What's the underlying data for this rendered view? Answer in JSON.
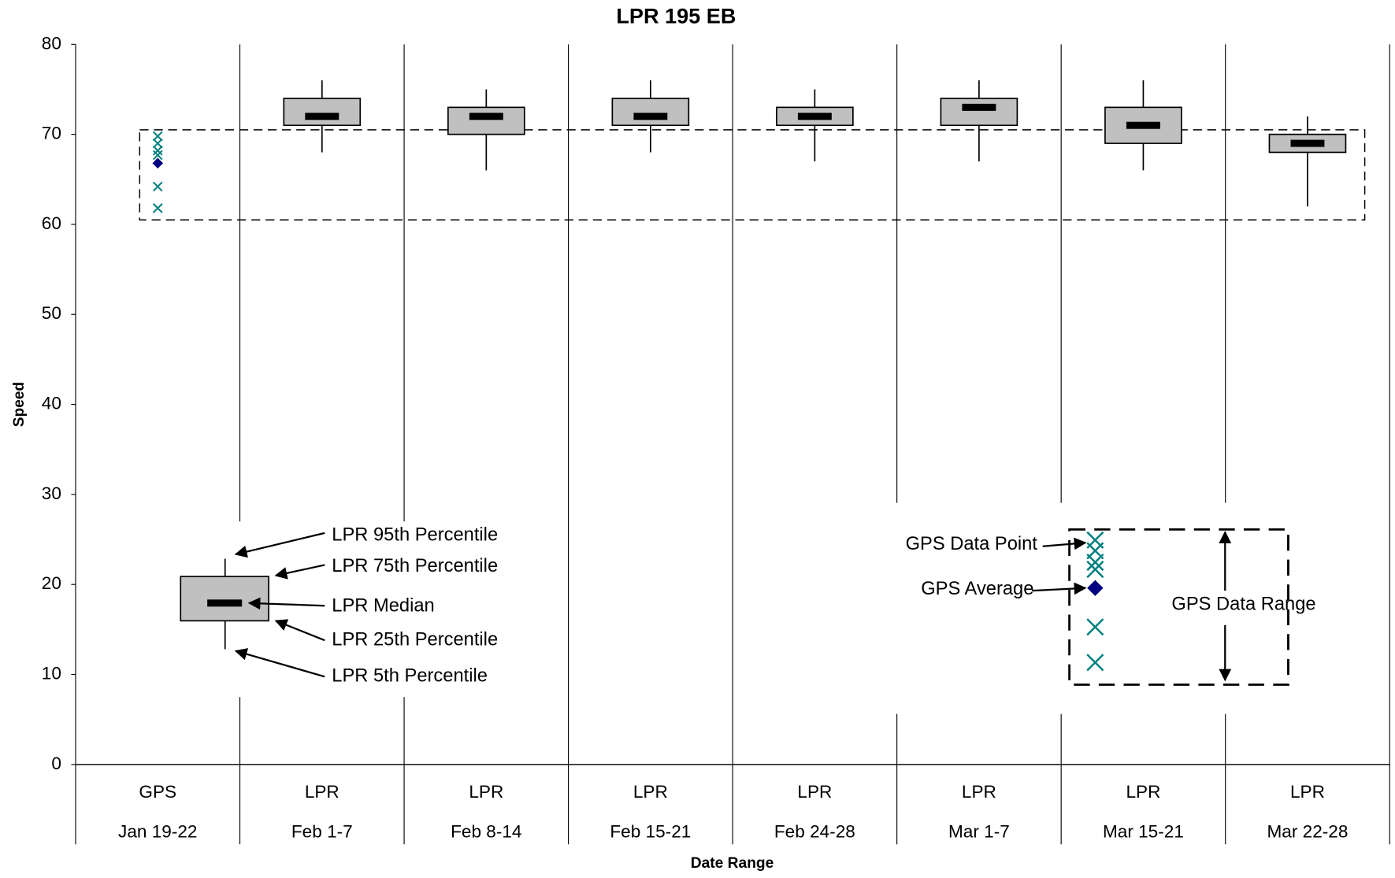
{
  "chart_data": {
    "type": "box",
    "title": "LPR 195 EB",
    "x_label": "Date Range",
    "y_label": "Speed",
    "groups": [
      "GPS",
      "LPR",
      "LPR",
      "LPR",
      "LPR",
      "LPR",
      "LPR",
      "LPR"
    ],
    "categories": [
      "Jan 19-22",
      "Feb 1-7",
      "Feb 8-14",
      "Feb 15-21",
      "Feb 24-28",
      "Mar 1-7",
      "Mar 15-21",
      "Mar 22-28"
    ],
    "p5": [
      null,
      68,
      66,
      68,
      67,
      67,
      66,
      62
    ],
    "p25": [
      null,
      71,
      70,
      71,
      71,
      71,
      69,
      68
    ],
    "median": [
      null,
      72,
      72,
      72,
      72,
      73,
      71,
      69
    ],
    "p75": [
      null,
      74,
      73,
      74,
      73,
      74,
      73,
      70
    ],
    "p95": [
      null,
      76,
      75,
      76,
      75,
      76,
      76,
      72
    ],
    "gps_points": [
      69.8,
      69,
      68.2,
      67.7,
      64.2,
      61.8
    ],
    "gps_average": 66.8,
    "range_band": [
      60.5,
      70.5
    ],
    "box_color": "#c0c0c0",
    "point_color": "#008080",
    "average_color": "#000080",
    "ylim": [
      0,
      80
    ],
    "yticks": [
      0,
      10,
      20,
      30,
      40,
      50,
      60,
      70,
      80
    ],
    "legend": {
      "box_labels": [
        "LPR 95th Percentile",
        "LPR 75th Percentile",
        "LPR Median",
        "LPR 25th Percentile",
        "LPR 5th Percentile"
      ],
      "gps_labels": [
        "GPS Data Point",
        "GPS Average",
        "GPS Data Range"
      ]
    }
  }
}
